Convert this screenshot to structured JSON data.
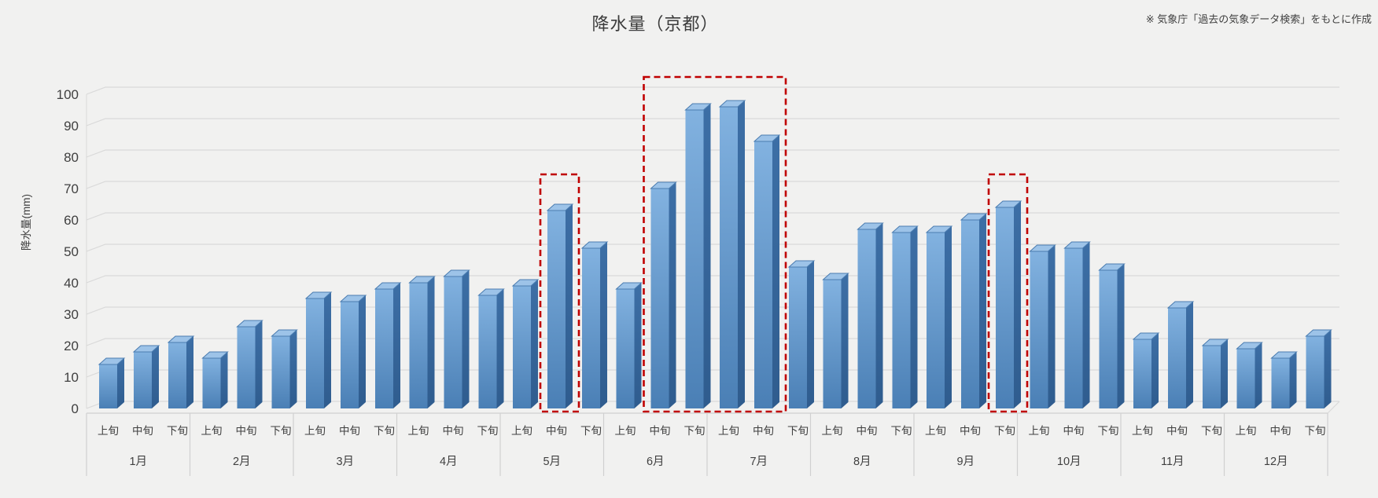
{
  "source_note": "※ 気象庁「過去の気象データ検索」をもとに作成",
  "colors": {
    "background": "#f1f1f0",
    "gridline": "#d9d9d9",
    "axis_table_line": "#d0d0d0",
    "text": "#404040",
    "bar_front_top": "#82b2e0",
    "bar_front_bottom": "#4a7fb5",
    "bar_top_face": "#9dc3e8",
    "bar_top_edge": "#4a7cb0",
    "bar_side_top": "#3d6fa6",
    "bar_side_bottom": "#2f5c8e",
    "highlight": "#c00000"
  },
  "chart_data": {
    "type": "bar",
    "title": "降水量（京都）",
    "ylabel": "降水量(mm)",
    "ylim": [
      0,
      100
    ],
    "ytick_step": 10,
    "yticks": [
      0,
      10,
      20,
      30,
      40,
      50,
      60,
      70,
      80,
      90,
      100
    ],
    "grid": true,
    "legend": false,
    "months": [
      "1月",
      "2月",
      "3月",
      "4月",
      "5月",
      "6月",
      "7月",
      "8月",
      "9月",
      "10月",
      "11月",
      "12月"
    ],
    "periods": [
      "上旬",
      "中旬",
      "下旬"
    ],
    "series": [
      {
        "name": "降水量(mm)",
        "values": [
          [
            14,
            18,
            21
          ],
          [
            16,
            26,
            23
          ],
          [
            35,
            34,
            38
          ],
          [
            40,
            42,
            36
          ],
          [
            39,
            63,
            51
          ],
          [
            38,
            70,
            95
          ],
          [
            96,
            85,
            45
          ],
          [
            41,
            57,
            56
          ],
          [
            56,
            60,
            64
          ],
          [
            50,
            51,
            44
          ],
          [
            22,
            32,
            20
          ],
          [
            19,
            16,
            23
          ]
        ]
      }
    ],
    "highlights": [
      {
        "range": "5月中旬",
        "month_from": 4,
        "period_from": 1,
        "month_to": 4,
        "period_to": 1,
        "top_mm": 74.5
      },
      {
        "range": "6月中旬～7月中旬",
        "month_from": 5,
        "period_from": 1,
        "month_to": 6,
        "period_to": 1,
        "top_mm": 105.5
      },
      {
        "range": "9月下旬",
        "month_from": 8,
        "period_from": 2,
        "month_to": 8,
        "period_to": 2,
        "top_mm": 74.5
      }
    ]
  }
}
